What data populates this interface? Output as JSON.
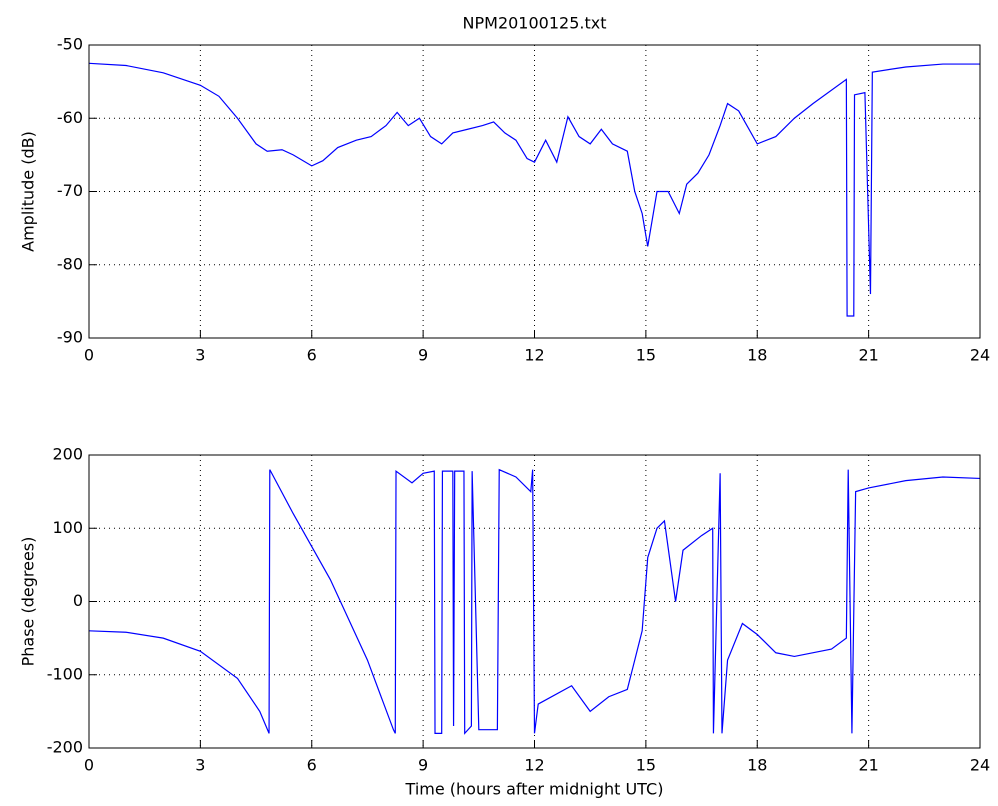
{
  "chart_data": [
    {
      "type": "line",
      "title": "NPM20100125.txt",
      "ylabel": "Amplitude (dB)",
      "color": "#0000ff",
      "grid": true,
      "xlim": [
        0,
        24
      ],
      "xticks": [
        0,
        3,
        6,
        9,
        12,
        15,
        18,
        21,
        24
      ],
      "ylim": [
        -90,
        -50
      ],
      "yticks": [
        -90,
        -80,
        -70,
        -60,
        -50
      ],
      "x": [
        0,
        1,
        2,
        3,
        3.5,
        4,
        4.5,
        4.8,
        5.2,
        5.5,
        6,
        6.3,
        6.7,
        7.2,
        7.6,
        8,
        8.3,
        8.6,
        8.9,
        9.2,
        9.5,
        9.8,
        10.2,
        10.6,
        10.9,
        11.2,
        11.5,
        11.8,
        12,
        12.3,
        12.6,
        12.9,
        13.2,
        13.5,
        13.8,
        14.1,
        14.5,
        14.7,
        14.9,
        15.05,
        15.3,
        15.6,
        15.9,
        16.1,
        16.4,
        16.7,
        17,
        17.2,
        17.5,
        18,
        18.5,
        19,
        19.5,
        20.4,
        20.42,
        20.6,
        20.62,
        20.9,
        21.05,
        21.1,
        22,
        23,
        24
      ],
      "values": [
        -52.5,
        -52.8,
        -53.8,
        -55.5,
        -57,
        -60,
        -63.5,
        -64.5,
        -64.3,
        -65,
        -66.5,
        -65.8,
        -64,
        -63,
        -62.5,
        -61,
        -59.2,
        -61,
        -60,
        -62.5,
        -63.5,
        -62,
        -61.5,
        -61,
        -60.5,
        -62,
        -63,
        -65.5,
        -66,
        -63,
        -66,
        -59.8,
        -62.5,
        -63.5,
        -61.5,
        -63.5,
        -64.5,
        -70,
        -73,
        -77.5,
        -70,
        -70,
        -73,
        -69,
        -67.5,
        -65,
        -61,
        -58,
        -59,
        -63.5,
        -62.5,
        -60,
        -58,
        -54.7,
        -87,
        -87,
        -56.8,
        -56.5,
        -84,
        -53.7,
        -53,
        -52.6,
        -52.6
      ]
    },
    {
      "type": "line",
      "ylabel": "Phase (degrees)",
      "xlabel": "Time (hours after midnight UTC)",
      "color": "#0000ff",
      "grid": true,
      "xlim": [
        0,
        24
      ],
      "xticks": [
        0,
        3,
        6,
        9,
        12,
        15,
        18,
        21,
        24
      ],
      "ylim": [
        -200,
        200
      ],
      "yticks": [
        -200,
        -100,
        0,
        100,
        200
      ],
      "x": [
        0,
        1,
        2,
        3,
        4,
        4.6,
        4.85,
        4.87,
        5.5,
        6.5,
        7.5,
        8.2,
        8.25,
        8.27,
        8.7,
        9,
        9.3,
        9.32,
        9.5,
        9.52,
        9.8,
        9.82,
        9.85,
        10.1,
        10.12,
        10.3,
        10.32,
        10.5,
        11,
        11.05,
        11.5,
        11.9,
        11.95,
        12,
        12.1,
        13,
        13.5,
        14,
        14.5,
        14.7,
        14.9,
        15.05,
        15.3,
        15.5,
        15.8,
        16,
        16.5,
        16.8,
        16.82,
        17,
        17.05,
        17.2,
        17.6,
        18,
        18.5,
        19,
        20,
        20.4,
        20.45,
        20.55,
        20.65,
        21,
        22,
        23,
        24
      ],
      "values": [
        -40,
        -42,
        -50,
        -68,
        -105,
        -150,
        -180,
        180,
        120,
        30,
        -80,
        -175,
        -180,
        178,
        162,
        175,
        178,
        -180,
        -180,
        178,
        178,
        -170,
        178,
        178,
        -180,
        -170,
        178,
        -175,
        -175,
        180,
        170,
        150,
        180,
        -180,
        -140,
        -115,
        -150,
        -130,
        -120,
        -80,
        -40,
        60,
        100,
        110,
        0,
        70,
        90,
        100,
        -180,
        175,
        -180,
        -80,
        -30,
        -45,
        -70,
        -75,
        -65,
        -50,
        180,
        -180,
        150,
        155,
        165,
        170,
        168
      ]
    }
  ]
}
